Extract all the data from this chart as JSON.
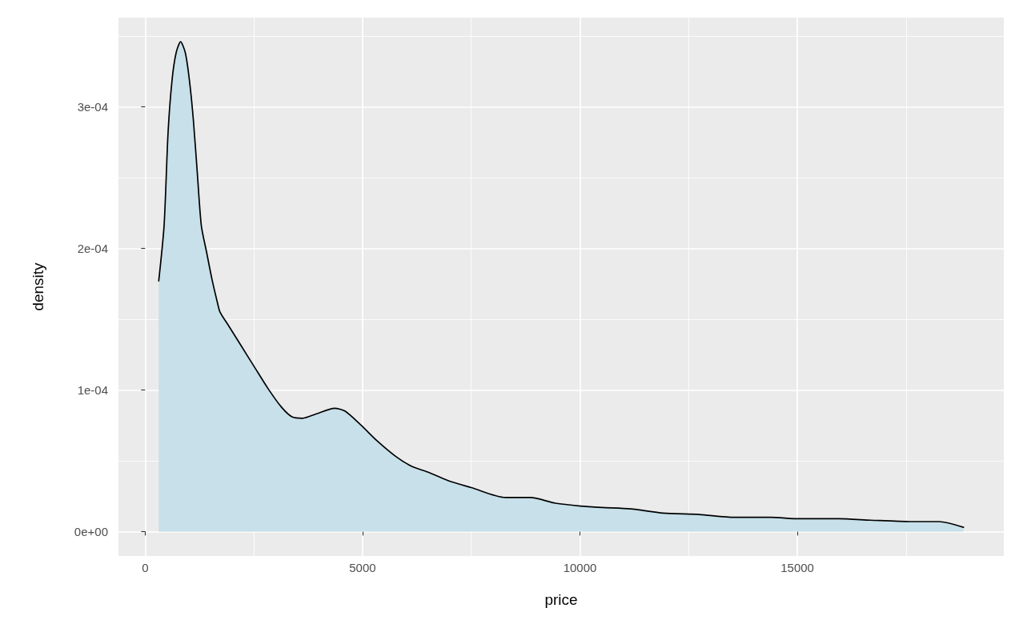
{
  "chart_data": {
    "type": "area",
    "xlabel": "price",
    "ylabel": "density",
    "xlim": [
      -614,
      19749
    ],
    "ylim": [
      -1.73e-05,
      0.000363
    ],
    "xticks": [
      0,
      {
        "value": 2500,
        "label": null
      },
      5000,
      {
        "value": 7500,
        "label": null
      },
      10000,
      {
        "value": 12500,
        "label": null
      },
      15000,
      {
        "value": 17500,
        "label": null
      }
    ],
    "yticks": [
      {
        "value": 0,
        "label": "0e+00"
      },
      {
        "value": 5e-05,
        "label": null
      },
      {
        "value": 0.0001,
        "label": "1e-04"
      },
      {
        "value": 0.00015,
        "label": null
      },
      {
        "value": 0.0002,
        "label": "2e-04"
      },
      {
        "value": 0.00025,
        "label": null
      },
      {
        "value": 0.0003,
        "label": "3e-04"
      },
      {
        "value": 0.00035,
        "label": null
      }
    ],
    "grid": true,
    "x": [
      312,
      435,
      527,
      619,
      711,
      815,
      925,
      1017,
      1108,
      1200,
      1292,
      1415,
      1538,
      1660,
      1722,
      1906,
      2212,
      2518,
      2825,
      3131,
      3376,
      3621,
      3928,
      4357,
      4602,
      4969,
      5337,
      5766,
      6134,
      6501,
      6967,
      7502,
      8285,
      8862,
      9439,
      10017,
      10511,
      11171,
      11912,
      12737,
      13561,
      14386,
      15046,
      15952,
      16691,
      17601,
      18259,
      18823
    ],
    "series": [
      {
        "color": "#c7e0e9",
        "values": [
          0.000177,
          0.000216,
          0.000282,
          0.000319,
          0.000338,
          0.000346,
          0.000338,
          0.000319,
          0.000291,
          0.000253,
          0.000216,
          0.000197,
          0.000178,
          0.000162,
          0.000155,
          0.000146,
          0.000131,
          0.000116,
          0.000101,
          8.8e-05,
          8.1e-05,
          8e-05,
          8.3e-05,
          8.7e-05,
          8.5e-05,
          7.5e-05,
          6.4e-05,
          5.3e-05,
          4.6e-05,
          4.2e-05,
          3.6e-05,
          3.1e-05,
          2.4e-05,
          2.4e-05,
          2e-05,
          1.8e-05,
          1.7e-05,
          1.6e-05,
          1.3e-05,
          1.2e-05,
          1e-05,
          1e-05,
          9e-06,
          9e-06,
          8e-06,
          7e-06,
          7e-06,
          3e-06
        ]
      }
    ]
  }
}
